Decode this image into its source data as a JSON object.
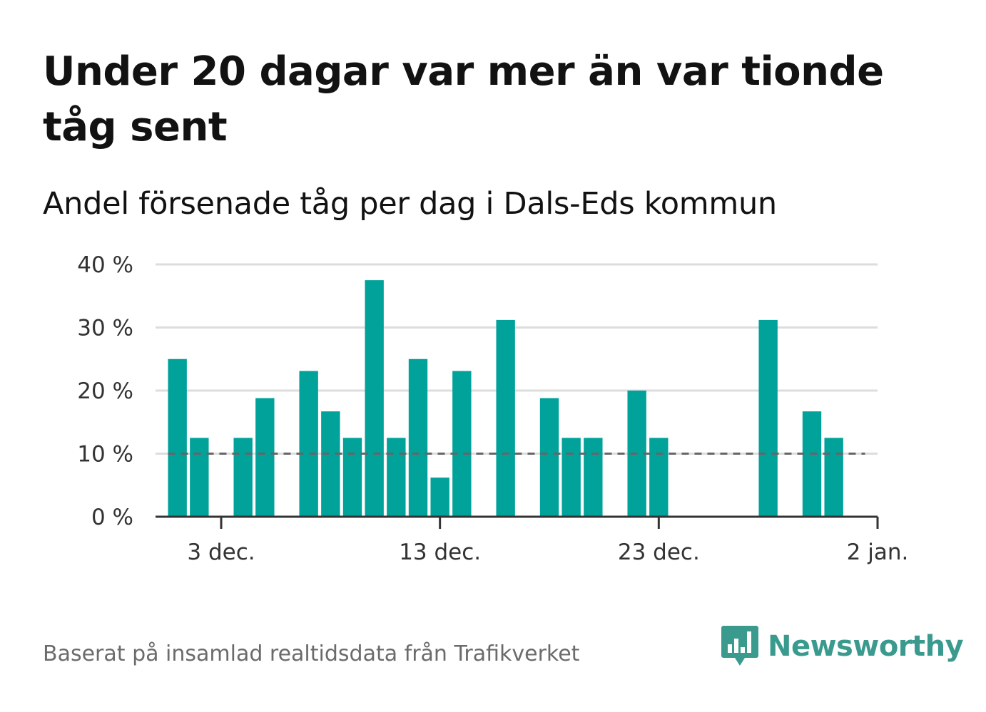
{
  "title": "Under 20 dagar var mer än var tionde tåg sent",
  "subtitle": "Andel försenade tåg per dag i Dals-Eds kommun",
  "footer": "Baserat på insamlad realtidsdata från Trafikverket",
  "brand": {
    "name": "Newsworthy",
    "color": "#3a9a8e"
  },
  "colors": {
    "bar": "#00a29a",
    "reference_line": "#666666",
    "grid": "#dddddd",
    "axis": "#333333"
  },
  "chart_data": {
    "type": "bar",
    "title": "Andel försenade tåg per dag i Dals-Eds kommun",
    "xlabel": "",
    "ylabel": "",
    "unit": "%",
    "ylim": [
      0,
      40
    ],
    "y_ticks": [
      {
        "value": 0,
        "label": "0 %"
      },
      {
        "value": 10,
        "label": "10 %"
      },
      {
        "value": 20,
        "label": "20 %"
      },
      {
        "value": 30,
        "label": "30 %"
      },
      {
        "value": 40,
        "label": "40 %"
      }
    ],
    "x_ticks": [
      {
        "date": "2019-12-03",
        "label": "3 dec."
      },
      {
        "date": "2019-12-13",
        "label": "13 dec."
      },
      {
        "date": "2019-12-23",
        "label": "23 dec."
      },
      {
        "date": "2020-01-02",
        "label": "2 jan."
      }
    ],
    "x_range": [
      "2019-11-30",
      "2020-01-02"
    ],
    "reference_line": {
      "value": 10,
      "style": "dashed"
    },
    "grid": true,
    "legend": false,
    "categories": [
      "2019-12-01",
      "2019-12-02",
      "2019-12-03",
      "2019-12-04",
      "2019-12-05",
      "2019-12-06",
      "2019-12-07",
      "2019-12-08",
      "2019-12-09",
      "2019-12-10",
      "2019-12-11",
      "2019-12-12",
      "2019-12-13",
      "2019-12-14",
      "2019-12-15",
      "2019-12-16",
      "2019-12-17",
      "2019-12-18",
      "2019-12-19",
      "2019-12-20",
      "2019-12-21",
      "2019-12-22",
      "2019-12-23",
      "2019-12-24",
      "2019-12-25",
      "2019-12-26",
      "2019-12-27",
      "2019-12-28",
      "2019-12-29",
      "2019-12-30",
      "2019-12-31"
    ],
    "values": [
      25.0,
      12.5,
      0,
      12.5,
      18.8,
      0,
      23.1,
      16.7,
      12.5,
      37.5,
      12.5,
      25.0,
      6.2,
      23.1,
      0,
      31.2,
      0,
      18.8,
      12.5,
      12.5,
      0,
      20.0,
      12.5,
      0,
      0,
      0,
      0,
      31.2,
      0,
      16.7,
      12.5
    ]
  }
}
